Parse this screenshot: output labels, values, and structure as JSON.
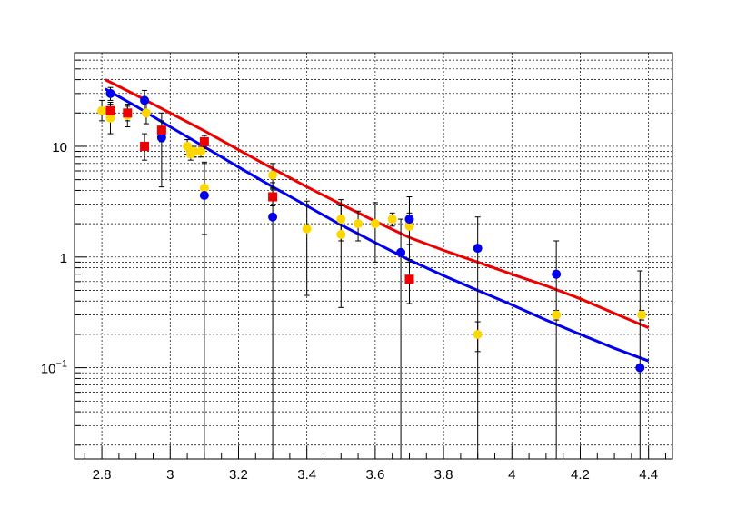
{
  "chart_data": {
    "type": "scatter",
    "title": "",
    "xlabel": "",
    "ylabel": "",
    "xlim": [
      2.72,
      4.47
    ],
    "ylim": [
      0.015,
      70
    ],
    "yscale": "log",
    "grid": true,
    "x_ticks": [
      {
        "value": 2.8,
        "label": "2.8"
      },
      {
        "value": 3.0,
        "label": "3"
      },
      {
        "value": 3.2,
        "label": "3.2"
      },
      {
        "value": 3.4,
        "label": "3.4"
      },
      {
        "value": 3.6,
        "label": "3.6"
      },
      {
        "value": 3.8,
        "label": "3.8"
      },
      {
        "value": 4.0,
        "label": "4"
      },
      {
        "value": 4.2,
        "label": "4.2"
      },
      {
        "value": 4.4,
        "label": "4.4"
      }
    ],
    "y_ticks": [
      {
        "value": 10,
        "label": "10"
      },
      {
        "value": 1,
        "label": "1"
      },
      {
        "value": 0.1,
        "label": "10",
        "exponent": "−1"
      }
    ],
    "series": [
      {
        "color": "#ffd700",
        "marker": "circle",
        "points": [
          {
            "x": 2.8,
            "y": 21,
            "lo": 17,
            "hi": 26
          },
          {
            "x": 2.825,
            "y": 18,
            "lo": 13,
            "hi": 24
          },
          {
            "x": 2.875,
            "y": 19,
            "lo": 15,
            "hi": 24
          },
          {
            "x": 2.93,
            "y": 20,
            "lo": 16,
            "hi": 25
          },
          {
            "x": 3.05,
            "y": 10,
            "lo": 8.5,
            "hi": 11.5
          },
          {
            "x": 3.06,
            "y": 8.5,
            "lo": 7.5,
            "hi": 9.5
          },
          {
            "x": 3.07,
            "y": 9,
            "lo": 8,
            "hi": 10
          },
          {
            "x": 3.09,
            "y": 9,
            "lo": 8,
            "hi": 10
          },
          {
            "x": 3.1,
            "y": 4.2,
            "lo": 1.6,
            "hi": 7.0
          },
          {
            "x": 3.3,
            "y": 5.5,
            "lo": 4.2,
            "hi": 7.0
          },
          {
            "x": 3.4,
            "y": 1.8,
            "lo": 0.45,
            "hi": 3.2
          },
          {
            "x": 3.5,
            "y": 2.2,
            "lo": 1.4,
            "hi": 3.3
          },
          {
            "x": 3.5,
            "y": 1.6,
            "lo": 0.35,
            "hi": 2.9
          },
          {
            "x": 3.55,
            "y": 2.0,
            "lo": 1.4,
            "hi": 2.6
          },
          {
            "x": 3.6,
            "y": 2.0,
            "lo": 0.9,
            "hi": 3.1
          },
          {
            "x": 3.65,
            "y": 2.2,
            "lo": 1.9,
            "hi": 2.5
          },
          {
            "x": 3.7,
            "y": 1.9,
            "lo": 1.3,
            "hi": 2.5
          },
          {
            "x": 3.9,
            "y": 0.2,
            "lo": 0.14,
            "hi": 0.26
          },
          {
            "x": 4.13,
            "y": 0.3,
            "lo": 0.27,
            "hi": 0.33
          },
          {
            "x": 4.38,
            "y": 0.3,
            "lo": 0.27,
            "hi": 0.33
          }
        ]
      },
      {
        "color": "#0000ee",
        "marker": "circle",
        "points": [
          {
            "x": 2.825,
            "y": 30,
            "lo": 26,
            "hi": 34
          },
          {
            "x": 2.925,
            "y": 26,
            "lo": 20,
            "hi": 32
          },
          {
            "x": 2.975,
            "y": 12,
            "lo": 4.3,
            "hi": 20
          },
          {
            "x": 3.1,
            "y": 3.6,
            "lo": 0.012,
            "hi": 7.2
          },
          {
            "x": 3.3,
            "y": 2.3,
            "lo": 0.012,
            "hi": 4.7
          },
          {
            "x": 3.675,
            "y": 1.1,
            "lo": 0.012,
            "hi": 2.2
          },
          {
            "x": 3.7,
            "y": 2.2,
            "lo": 0.95,
            "hi": 3.5
          },
          {
            "x": 3.9,
            "y": 1.2,
            "lo": 0.012,
            "hi": 2.3
          },
          {
            "x": 4.13,
            "y": 0.7,
            "lo": 0.012,
            "hi": 1.4
          },
          {
            "x": 4.375,
            "y": 0.1,
            "lo": 0.012,
            "hi": 0.75
          }
        ]
      },
      {
        "color": "#ee0000",
        "marker": "square",
        "points": [
          {
            "x": 2.825,
            "y": 21,
            "lo": 17,
            "hi": 25
          },
          {
            "x": 2.875,
            "y": 20,
            "lo": 17,
            "hi": 23
          },
          {
            "x": 2.925,
            "y": 10,
            "lo": 7.5,
            "hi": 13
          },
          {
            "x": 2.975,
            "y": 14,
            "lo": 11,
            "hi": 17
          },
          {
            "x": 3.1,
            "y": 11,
            "lo": 9.5,
            "hi": 12.5
          },
          {
            "x": 3.3,
            "y": 3.5,
            "lo": 2.9,
            "hi": 4.1
          },
          {
            "x": 3.7,
            "y": 0.63,
            "lo": 0.38,
            "hi": 0.9
          }
        ]
      }
    ],
    "curves": [
      {
        "color": "#ee0000",
        "x": [
          2.81,
          2.9,
          3.0,
          3.1,
          3.2,
          3.3,
          3.4,
          3.5,
          3.6,
          3.7,
          3.8,
          3.9,
          4.0,
          4.1,
          4.2,
          4.3,
          4.4
        ],
        "y": [
          40,
          29,
          20,
          13.8,
          9.3,
          6.3,
          4.3,
          3.0,
          2.1,
          1.5,
          1.15,
          0.9,
          0.7,
          0.55,
          0.42,
          0.31,
          0.23
        ]
      },
      {
        "color": "#0000ee",
        "x": [
          2.81,
          2.9,
          3.0,
          3.1,
          3.2,
          3.3,
          3.4,
          3.5,
          3.6,
          3.7,
          3.8,
          3.9,
          4.0,
          4.1,
          4.2,
          4.3,
          4.4
        ],
        "y": [
          33,
          23,
          15,
          9.9,
          6.5,
          4.3,
          2.9,
          1.95,
          1.35,
          0.94,
          0.68,
          0.5,
          0.37,
          0.27,
          0.2,
          0.15,
          0.115
        ]
      }
    ]
  }
}
